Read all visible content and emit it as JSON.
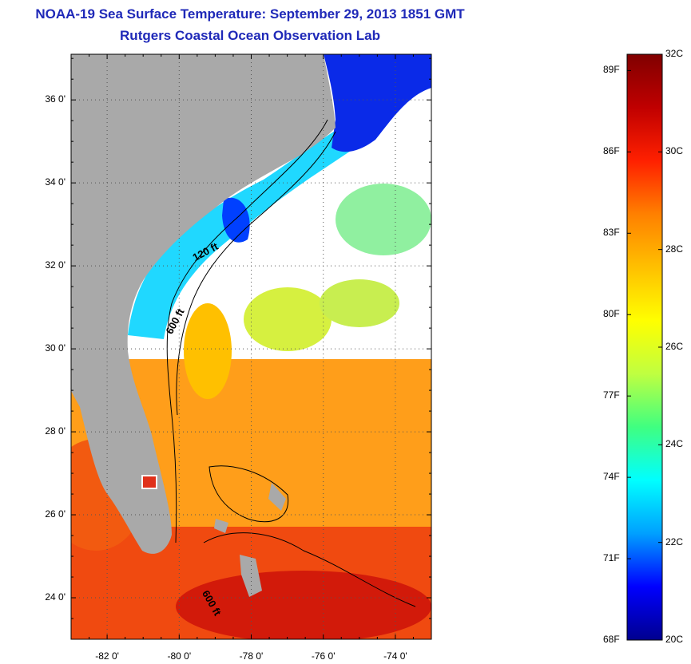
{
  "title": "NOAA-19 Sea Surface Temperature:  September 29, 2013 1851 GMT",
  "subtitle": "Rutgers Coastal Ocean Observation Lab",
  "map": {
    "lon_range": [
      -83.0,
      -73.0
    ],
    "lat_range": [
      23.0,
      37.1
    ],
    "lat_ticks": [
      {
        "value": 24,
        "label": "24 0'"
      },
      {
        "value": 26,
        "label": "26 0'"
      },
      {
        "value": 28,
        "label": "28 0'"
      },
      {
        "value": 30,
        "label": "30 0'"
      },
      {
        "value": 32,
        "label": "32 0'"
      },
      {
        "value": 34,
        "label": "34 0'"
      },
      {
        "value": 36,
        "label": "36 0'"
      }
    ],
    "lon_ticks": [
      {
        "value": -82,
        "label": "-82 0'"
      },
      {
        "value": -80,
        "label": "-80 0'"
      },
      {
        "value": -78,
        "label": "-78 0'"
      },
      {
        "value": -76,
        "label": "-76 0'"
      },
      {
        "value": -74,
        "label": "-74 0'"
      }
    ],
    "contour_labels": [
      "120 ft",
      "600 ft",
      "600 ft"
    ],
    "land_color": "#a9a9a9",
    "cloud_color": "#ffffff"
  },
  "colorbar": {
    "celsius_labels": [
      "32C",
      "30C",
      "28C",
      "26C",
      "24C",
      "22C",
      "20C"
    ],
    "fahrenheit_labels": [
      "89F",
      "86F",
      "83F",
      "80F",
      "77F",
      "74F",
      "71F",
      "68F"
    ],
    "range_c": [
      20,
      32
    ],
    "stops": [
      "#00008f",
      "#0000ff",
      "#00a0ff",
      "#00ffff",
      "#40ff80",
      "#c0ff40",
      "#ffff00",
      "#ffc000",
      "#ff8000",
      "#ff2000",
      "#c00000",
      "#800000"
    ]
  }
}
